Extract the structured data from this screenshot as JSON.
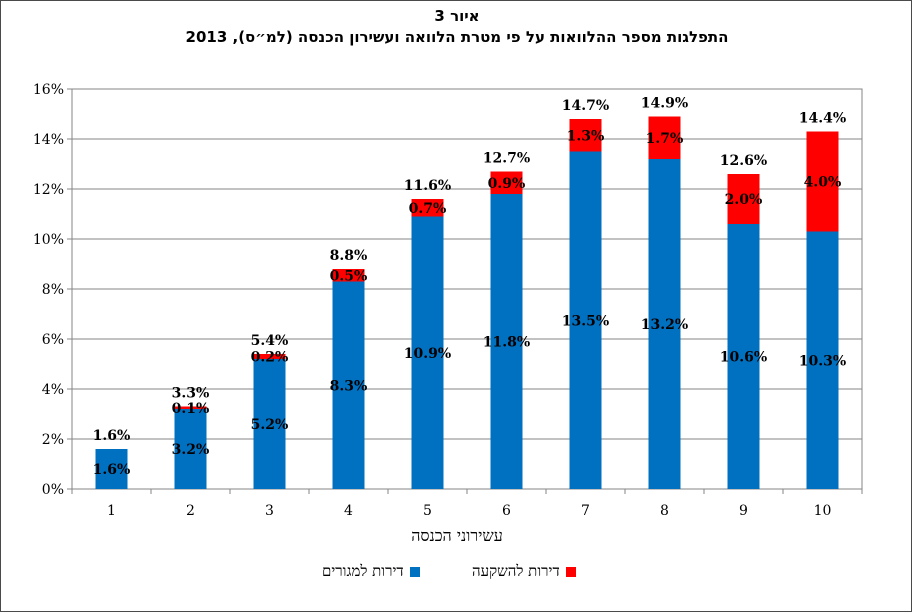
{
  "chart_data": {
    "type": "bar",
    "stacked": true,
    "title": "איור 3",
    "subtitle": "התפלגות מספר ההלוואות על פי מטרת הלוואה ועשירון הכנסה (למ״ס), 2013",
    "xlabel": "עשירוני הכנסה",
    "ylabel": "",
    "categories": [
      "1",
      "2",
      "3",
      "4",
      "5",
      "6",
      "7",
      "8",
      "9",
      "10"
    ],
    "ylim": [
      0,
      16
    ],
    "yticks": [
      "0%",
      "2%",
      "4%",
      "6%",
      "8%",
      "10%",
      "12%",
      "14%",
      "16%"
    ],
    "series": [
      {
        "name": "דירות למגורים",
        "color": "#0070C0",
        "values": [
          1.6,
          3.2,
          5.2,
          8.3,
          10.9,
          11.8,
          13.5,
          13.2,
          10.6,
          10.3
        ],
        "labels": [
          "1.6%",
          "3.2%",
          "5.2%",
          "8.3%",
          "10.9%",
          "11.8%",
          "13.5%",
          "13.2%",
          "10.6%",
          "10.3%"
        ]
      },
      {
        "name": "דירות להשקעה",
        "color": "#FF0000",
        "values": [
          0.0,
          0.1,
          0.2,
          0.5,
          0.7,
          0.9,
          1.3,
          1.7,
          2.0,
          4.0
        ],
        "labels": [
          "",
          "0.1%",
          "0.2%",
          "0.5%",
          "0.7%",
          "0.9%",
          "1.3%",
          "1.7%",
          "2.0%",
          "4.0%"
        ]
      }
    ],
    "totals": [
      "1.6%",
      "3.3%",
      "5.4%",
      "8.8%",
      "11.6%",
      "12.7%",
      "14.7%",
      "14.9%",
      "12.6%",
      "14.4%"
    ],
    "grid": true,
    "legend_position": "bottom"
  }
}
